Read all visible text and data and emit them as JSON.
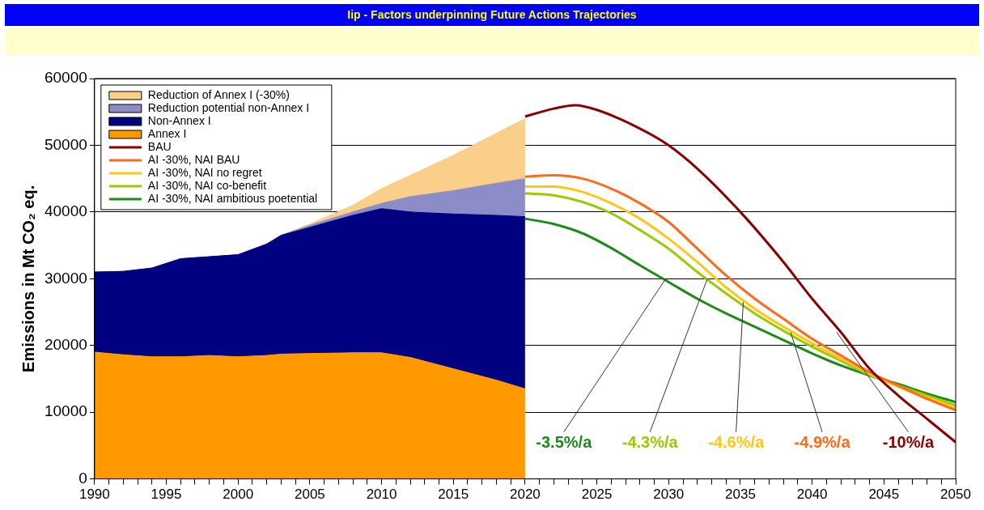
{
  "chart_data": {
    "type": "area",
    "title": "Iip - Factors underpinning Future Actions Trajectories",
    "ylabel": "Emissions in Mt CO₂ eq.",
    "stacked": true,
    "grid": "y",
    "legend": "top left",
    "xlim": [
      1990,
      2050
    ],
    "xticks": [
      1990,
      {
        "value": 1991,
        "label": null
      },
      {
        "value": 1992,
        "label": null
      },
      {
        "value": 1993,
        "label": null
      },
      {
        "value": 1994,
        "label": null
      },
      1995,
      {
        "value": 1996,
        "label": null
      },
      {
        "value": 1997,
        "label": null
      },
      {
        "value": 1998,
        "label": null
      },
      {
        "value": 1999,
        "label": null
      },
      2000,
      {
        "value": 2001,
        "label": null
      },
      {
        "value": 2002,
        "label": null
      },
      {
        "value": 2003,
        "label": null
      },
      {
        "value": 2004,
        "label": null
      },
      2005,
      {
        "value": 2006,
        "label": null
      },
      {
        "value": 2007,
        "label": null
      },
      {
        "value": 2008,
        "label": null
      },
      {
        "value": 2009,
        "label": null
      },
      2010,
      {
        "value": 2011,
        "label": null
      },
      {
        "value": 2012,
        "label": null
      },
      {
        "value": 2013,
        "label": null
      },
      {
        "value": 2014,
        "label": null
      },
      2015,
      {
        "value": 2016,
        "label": null
      },
      {
        "value": 2017,
        "label": null
      },
      {
        "value": 2018,
        "label": null
      },
      {
        "value": 2019,
        "label": null
      },
      2020,
      {
        "value": 2021,
        "label": null
      },
      {
        "value": 2022,
        "label": null
      },
      {
        "value": 2023,
        "label": null
      },
      {
        "value": 2024,
        "label": null
      },
      2025,
      {
        "value": 2026,
        "label": null
      },
      {
        "value": 2027,
        "label": null
      },
      {
        "value": 2028,
        "label": null
      },
      {
        "value": 2029,
        "label": null
      },
      2030,
      {
        "value": 2031,
        "label": null
      },
      {
        "value": 2032,
        "label": null
      },
      {
        "value": 2033,
        "label": null
      },
      {
        "value": 2034,
        "label": null
      },
      2035,
      {
        "value": 2036,
        "label": null
      },
      {
        "value": 2037,
        "label": null
      },
      {
        "value": 2038,
        "label": null
      },
      {
        "value": 2039,
        "label": null
      },
      2040,
      {
        "value": 2041,
        "label": null
      },
      {
        "value": 2042,
        "label": null
      },
      {
        "value": 2043,
        "label": null
      },
      {
        "value": 2044,
        "label": null
      },
      2045,
      {
        "value": 2046,
        "label": null
      },
      {
        "value": 2047,
        "label": null
      },
      {
        "value": 2048,
        "label": null
      },
      {
        "value": 2049,
        "label": null
      },
      2050
    ],
    "ylim": [
      0,
      60000
    ],
    "yticks": [
      0,
      10000,
      20000,
      30000,
      40000,
      50000,
      60000
    ],
    "series": [
      {
        "name": "Annex I",
        "color": "#ff9900",
        "x": [
          1990,
          1992,
          1994,
          1996,
          1998,
          2000,
          2002,
          2003,
          2005,
          2008,
          2010,
          2012,
          2015,
          2018,
          2020
        ],
        "values": [
          19000,
          18600,
          18300,
          18300,
          18500,
          18300,
          18500,
          18700,
          18800,
          18900,
          18900,
          18200,
          16500,
          14800,
          13500
        ]
      },
      {
        "name": "Non-Annex I",
        "color": "#000080",
        "x": [
          1990,
          1992,
          1994,
          1996,
          1998,
          2000,
          2002,
          2003,
          2005,
          2008,
          2010,
          2012,
          2015,
          2018,
          2020
        ],
        "values": [
          12000,
          12500,
          13300,
          14700,
          14800,
          15300,
          16700,
          17800,
          18900,
          20600,
          21600,
          21800,
          23200,
          24700,
          25800
        ]
      },
      {
        "name": "Reduction potential non-Annex I",
        "color": "#8c8cc6",
        "x": [
          1990,
          1992,
          1994,
          1996,
          1998,
          2000,
          2002,
          2003,
          2005,
          2008,
          2010,
          2012,
          2015,
          2018,
          2020
        ],
        "values": [
          0,
          0,
          0,
          0,
          0,
          0,
          0,
          0,
          300,
          500,
          800,
          2300,
          3500,
          4800,
          5700
        ]
      },
      {
        "name": "Reduction of Annex I (-30%)",
        "color": "#f9cf8a",
        "x": [
          1990,
          1992,
          1994,
          1996,
          1998,
          2000,
          2002,
          2003,
          2005,
          2008,
          2010,
          2012,
          2015,
          2018,
          2020
        ],
        "values": [
          0,
          0,
          0,
          0,
          0,
          0,
          0,
          0,
          200,
          1000,
          2200,
          3200,
          5300,
          7500,
          9000
        ]
      },
      {
        "name": "BAU",
        "type": "line",
        "color": "#8b0000",
        "x": [
          2020,
          2022,
          2023.5,
          2025,
          2028,
          2030,
          2032,
          2035,
          2038,
          2040,
          2042,
          2044,
          2046,
          2048,
          2050
        ],
        "values": [
          54300,
          55500,
          56000,
          55300,
          52500,
          50000,
          46500,
          40000,
          32500,
          27000,
          22000,
          16500,
          12500,
          9000,
          5500
        ]
      },
      {
        "name": "AI -30%, NAI BAU",
        "type": "line",
        "color": "#ff6a1a",
        "x": [
          2020,
          2022,
          2024,
          2026,
          2028,
          2030,
          2032,
          2034,
          2036,
          2038,
          2040,
          2042,
          2044,
          2046,
          2048,
          2050
        ],
        "values": [
          45300,
          45500,
          45000,
          43500,
          41300,
          38500,
          34500,
          30500,
          27000,
          24000,
          21000,
          18500,
          16000,
          14000,
          12000,
          10300
        ]
      },
      {
        "name": "AI -30%, NAI no regret",
        "type": "line",
        "color": "#ffc61a",
        "x": [
          2020,
          2022,
          2024,
          2026,
          2028,
          2030,
          2032,
          2034,
          2036,
          2038,
          2040,
          2042,
          2044,
          2046,
          2048,
          2050
        ],
        "values": [
          43800,
          43800,
          43000,
          41300,
          39000,
          36000,
          32500,
          28700,
          25500,
          22800,
          20300,
          18000,
          15800,
          13800,
          12200,
          10700
        ]
      },
      {
        "name": "AI -30%, NAI co-benefit",
        "type": "line",
        "color": "#99cc00",
        "x": [
          2020,
          2022,
          2024,
          2026,
          2028,
          2030,
          2032,
          2034,
          2036,
          2038,
          2040,
          2042,
          2044,
          2046,
          2048,
          2050
        ],
        "values": [
          42800,
          42500,
          41500,
          39800,
          37300,
          34500,
          31000,
          27800,
          24800,
          22200,
          19800,
          17700,
          15600,
          14000,
          12500,
          11000
        ]
      },
      {
        "name": "AI -30%, NAI ambitious poetential",
        "type": "line",
        "color": "#1a8c1a",
        "x": [
          2020,
          2022,
          2024,
          2026,
          2028,
          2030,
          2032,
          2034,
          2036,
          2038,
          2040,
          2042,
          2044,
          2046,
          2048,
          2050
        ],
        "values": [
          39000,
          38200,
          36800,
          34600,
          32000,
          29500,
          27000,
          24800,
          22800,
          20800,
          18800,
          17000,
          15500,
          14200,
          12800,
          11500
        ]
      }
    ],
    "annotations": [
      {
        "text": "-3.5%/a",
        "x": 2029.8,
        "y": 30000
      },
      {
        "text": "-4.3%/a",
        "x": 2032.7,
        "y": 30000
      },
      {
        "text": "-4.6%/a",
        "x": 2035.2,
        "y": 26500
      },
      {
        "text": "-4.9%/a",
        "x": 2038.5,
        "y": 22000
      },
      {
        "text": "-10%/a",
        "x": 2041.7,
        "y": 22000
      }
    ]
  }
}
